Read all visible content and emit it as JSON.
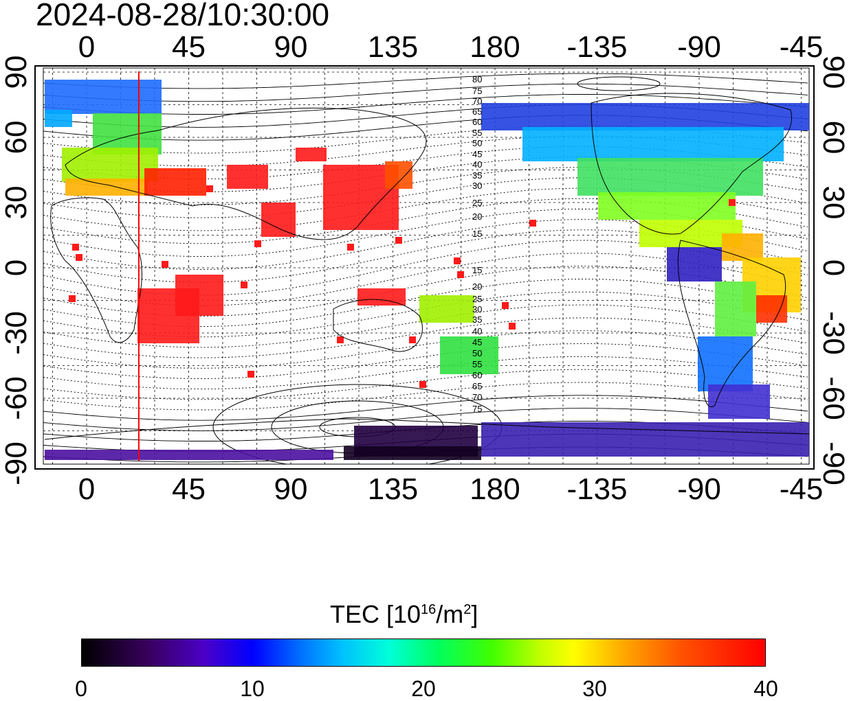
{
  "timestamp": "2024-08-28/10:30:00",
  "axes": {
    "top_lon_labels": [
      "0",
      "45",
      "90",
      "135",
      "180",
      "-135",
      "-90",
      "-45"
    ],
    "bottom_lon_labels": [
      "0",
      "45",
      "90",
      "135",
      "180",
      "-135",
      "-90",
      "-45"
    ],
    "left_lat_labels": [
      "90",
      "60",
      "30",
      "0",
      "-30",
      "-60",
      "-90"
    ],
    "right_lat_labels": [
      "90",
      "60",
      "30",
      "0",
      "-30",
      "-60",
      "-90"
    ]
  },
  "contour_labels": [
    "80",
    "75",
    "70",
    "65",
    "60",
    "55",
    "50",
    "45",
    "40",
    "35",
    "30",
    "25",
    "20",
    "15",
    "15",
    "20",
    "25",
    "30",
    "35",
    "40",
    "45",
    "50",
    "55",
    "60",
    "65",
    "70",
    "75"
  ],
  "overlay": {
    "meridian_lon": 23,
    "color": "#ff0000"
  },
  "colorbar": {
    "title": "TEC  [10",
    "title_sup1": "16",
    "title_mid": "/m",
    "title_sup2": "2",
    "title_end": "]",
    "ticks": [
      "0",
      "10",
      "20",
      "30",
      "40"
    ],
    "min": 0,
    "max": 40
  }
}
